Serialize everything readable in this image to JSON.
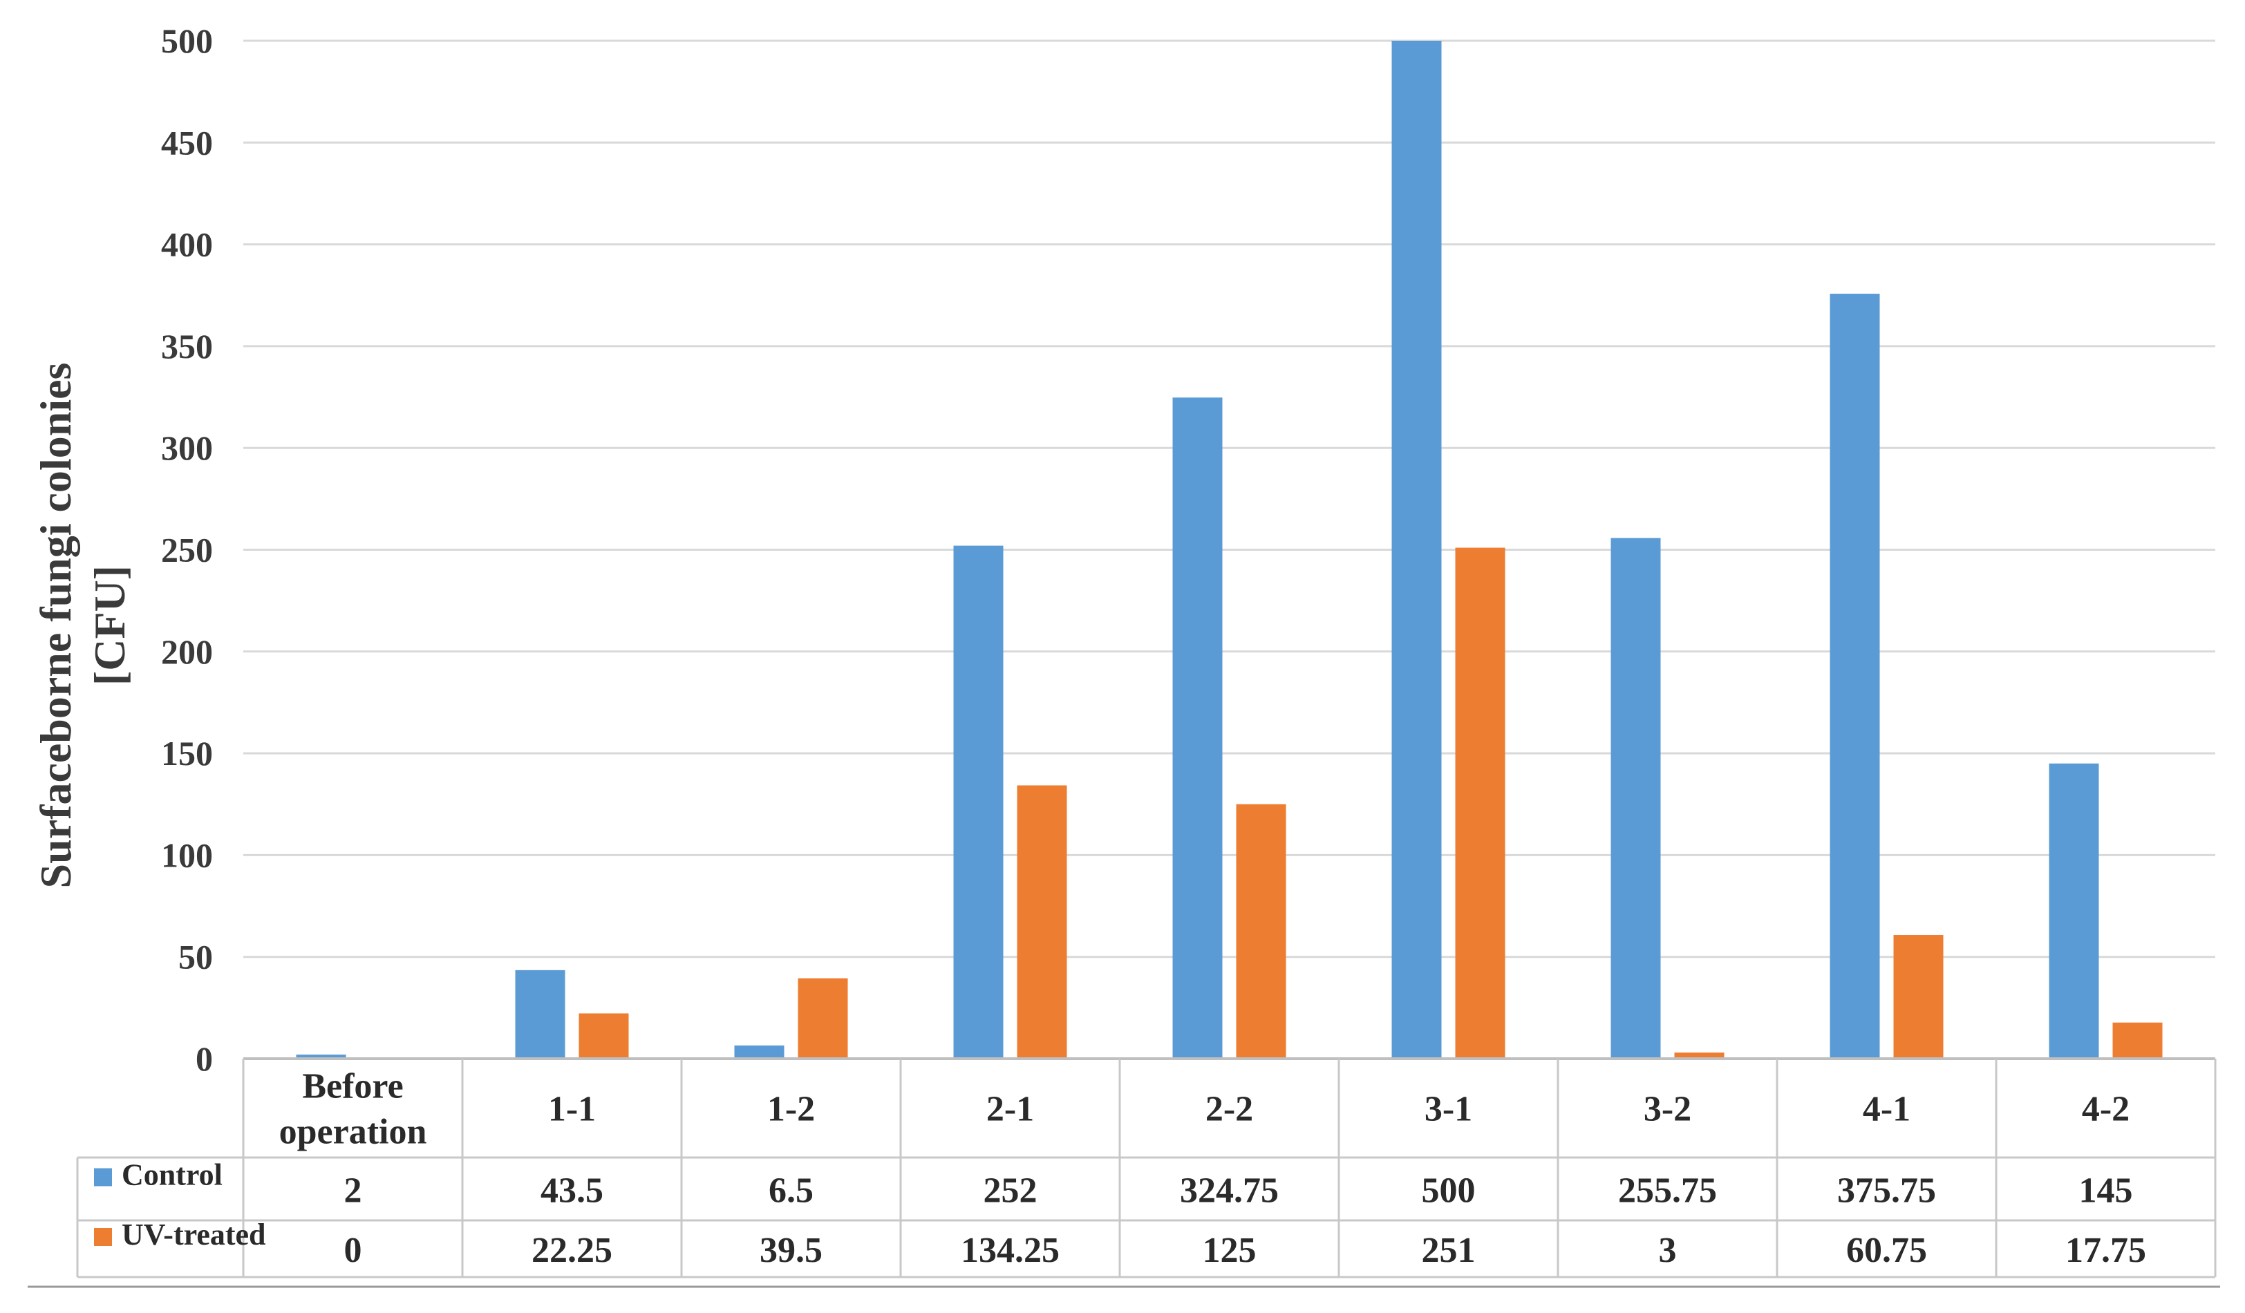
{
  "chart_data": {
    "type": "bar",
    "title": "",
    "xlabel": "",
    "ylabel_lines": [
      "Surfaceborne fungi colonies",
      "[CFU]"
    ],
    "ylim": [
      0,
      500
    ],
    "yticks": [
      0,
      50,
      100,
      150,
      200,
      250,
      300,
      350,
      400,
      450,
      500
    ],
    "grid": true,
    "legend": "in data table, left of rows",
    "categories": [
      [
        "Before",
        "operation"
      ],
      [
        "1-1"
      ],
      [
        "1-2"
      ],
      [
        "2-1"
      ],
      [
        "2-2"
      ],
      [
        "3-1"
      ],
      [
        "3-2"
      ],
      [
        "4-1"
      ],
      [
        "4-2"
      ]
    ],
    "series": [
      {
        "name": "Control",
        "color": "#5b9bd5",
        "values": [
          2,
          43.5,
          6.5,
          252,
          324.75,
          500,
          255.75,
          375.75,
          145
        ],
        "labels": [
          "2",
          "43.5",
          "6.5",
          "252",
          "324.75",
          "500",
          "255.75",
          "375.75",
          "145"
        ]
      },
      {
        "name": "UV-treated",
        "color": "#ed7d31",
        "values": [
          0,
          22.25,
          39.5,
          134.25,
          125,
          251,
          3,
          60.75,
          17.75
        ],
        "labels": [
          "0",
          "22.25",
          "39.5",
          "134.25",
          "125",
          "251",
          "3",
          "60.75",
          "17.75"
        ]
      }
    ]
  }
}
